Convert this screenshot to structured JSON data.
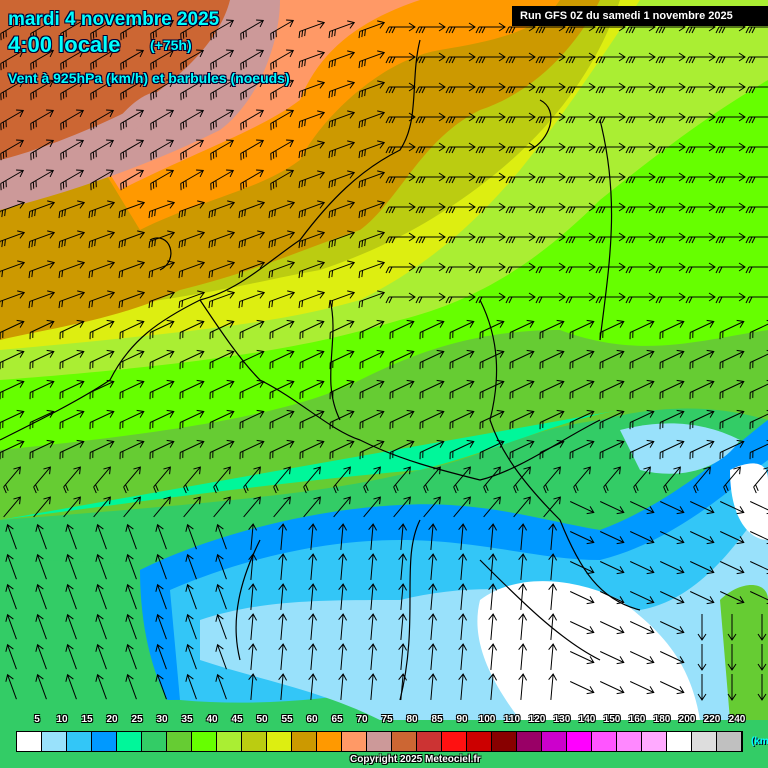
{
  "header": {
    "date": "mardi 4 novembre 2025",
    "time": "4:00 locale",
    "lead": "(+75h)",
    "parameter": "Vent à 925hPa (km/h) et barbules (noeuds)",
    "run": "Run GFS 0Z du samedi 1 novembre 2025"
  },
  "legend": {
    "unit": "(km/h)",
    "labels": [
      "5",
      "10",
      "15",
      "20",
      "25",
      "30",
      "35",
      "40",
      "45",
      "50",
      "55",
      "60",
      "65",
      "70",
      "75",
      "80",
      "85",
      "90",
      "100",
      "110",
      "120",
      "130",
      "140",
      "150",
      "160",
      "180",
      "200",
      "220",
      "240"
    ],
    "colors": [
      "#ffffff",
      "#99e1fb",
      "#33c6f7",
      "#0099ff",
      "#00f79a",
      "#33cc66",
      "#66cc33",
      "#66ff00",
      "#aaee33",
      "#bbcc11",
      "#ddee11",
      "#cc9900",
      "#ff9900",
      "#ff9966",
      "#cc9999",
      "#cc6633",
      "#cc3333",
      "#ff1111",
      "#cc0000",
      "#880000",
      "#990066",
      "#cc00cc",
      "#ff00ff",
      "#ff55ff",
      "#ff88ff",
      "#ffaaff",
      "#ffffff",
      "#dddddd",
      "#c0c0c0"
    ]
  },
  "copyright": "Copyright 2025 Meteociel.fr"
}
